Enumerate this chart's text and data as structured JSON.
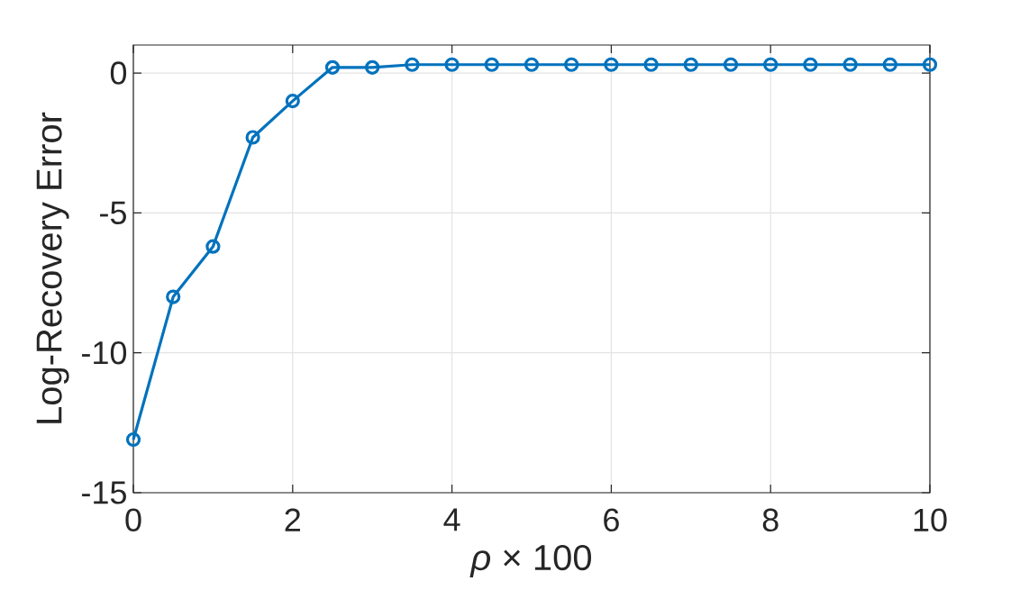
{
  "chart_data": {
    "type": "line",
    "xlabel": "*ρ* × 100",
    "ylabel": "Log-Recovery Error",
    "x": [
      0,
      0.5,
      1,
      1.5,
      2,
      2.5,
      3,
      3.5,
      4,
      4.5,
      5,
      5.5,
      6,
      6.5,
      7,
      7.5,
      8,
      8.5,
      9,
      9.5,
      10
    ],
    "series": [
      {
        "color": "#0072bd",
        "values": [
          -13.1,
          -8.0,
          -6.2,
          -2.3,
          -1.0,
          0.2,
          0.2,
          0.3,
          0.3,
          0.3,
          0.3,
          0.3,
          0.3,
          0.3,
          0.3,
          0.3,
          0.3,
          0.3,
          0.3,
          0.3,
          0.3
        ]
      }
    ],
    "xlim": [
      0,
      10
    ],
    "ylim": [
      -15,
      1
    ],
    "xticks": [
      0,
      2,
      4,
      6,
      8,
      10
    ],
    "yticks": [
      -15,
      -10,
      -5,
      0
    ],
    "grid": true,
    "marker": "circle",
    "line_style": "solid"
  }
}
